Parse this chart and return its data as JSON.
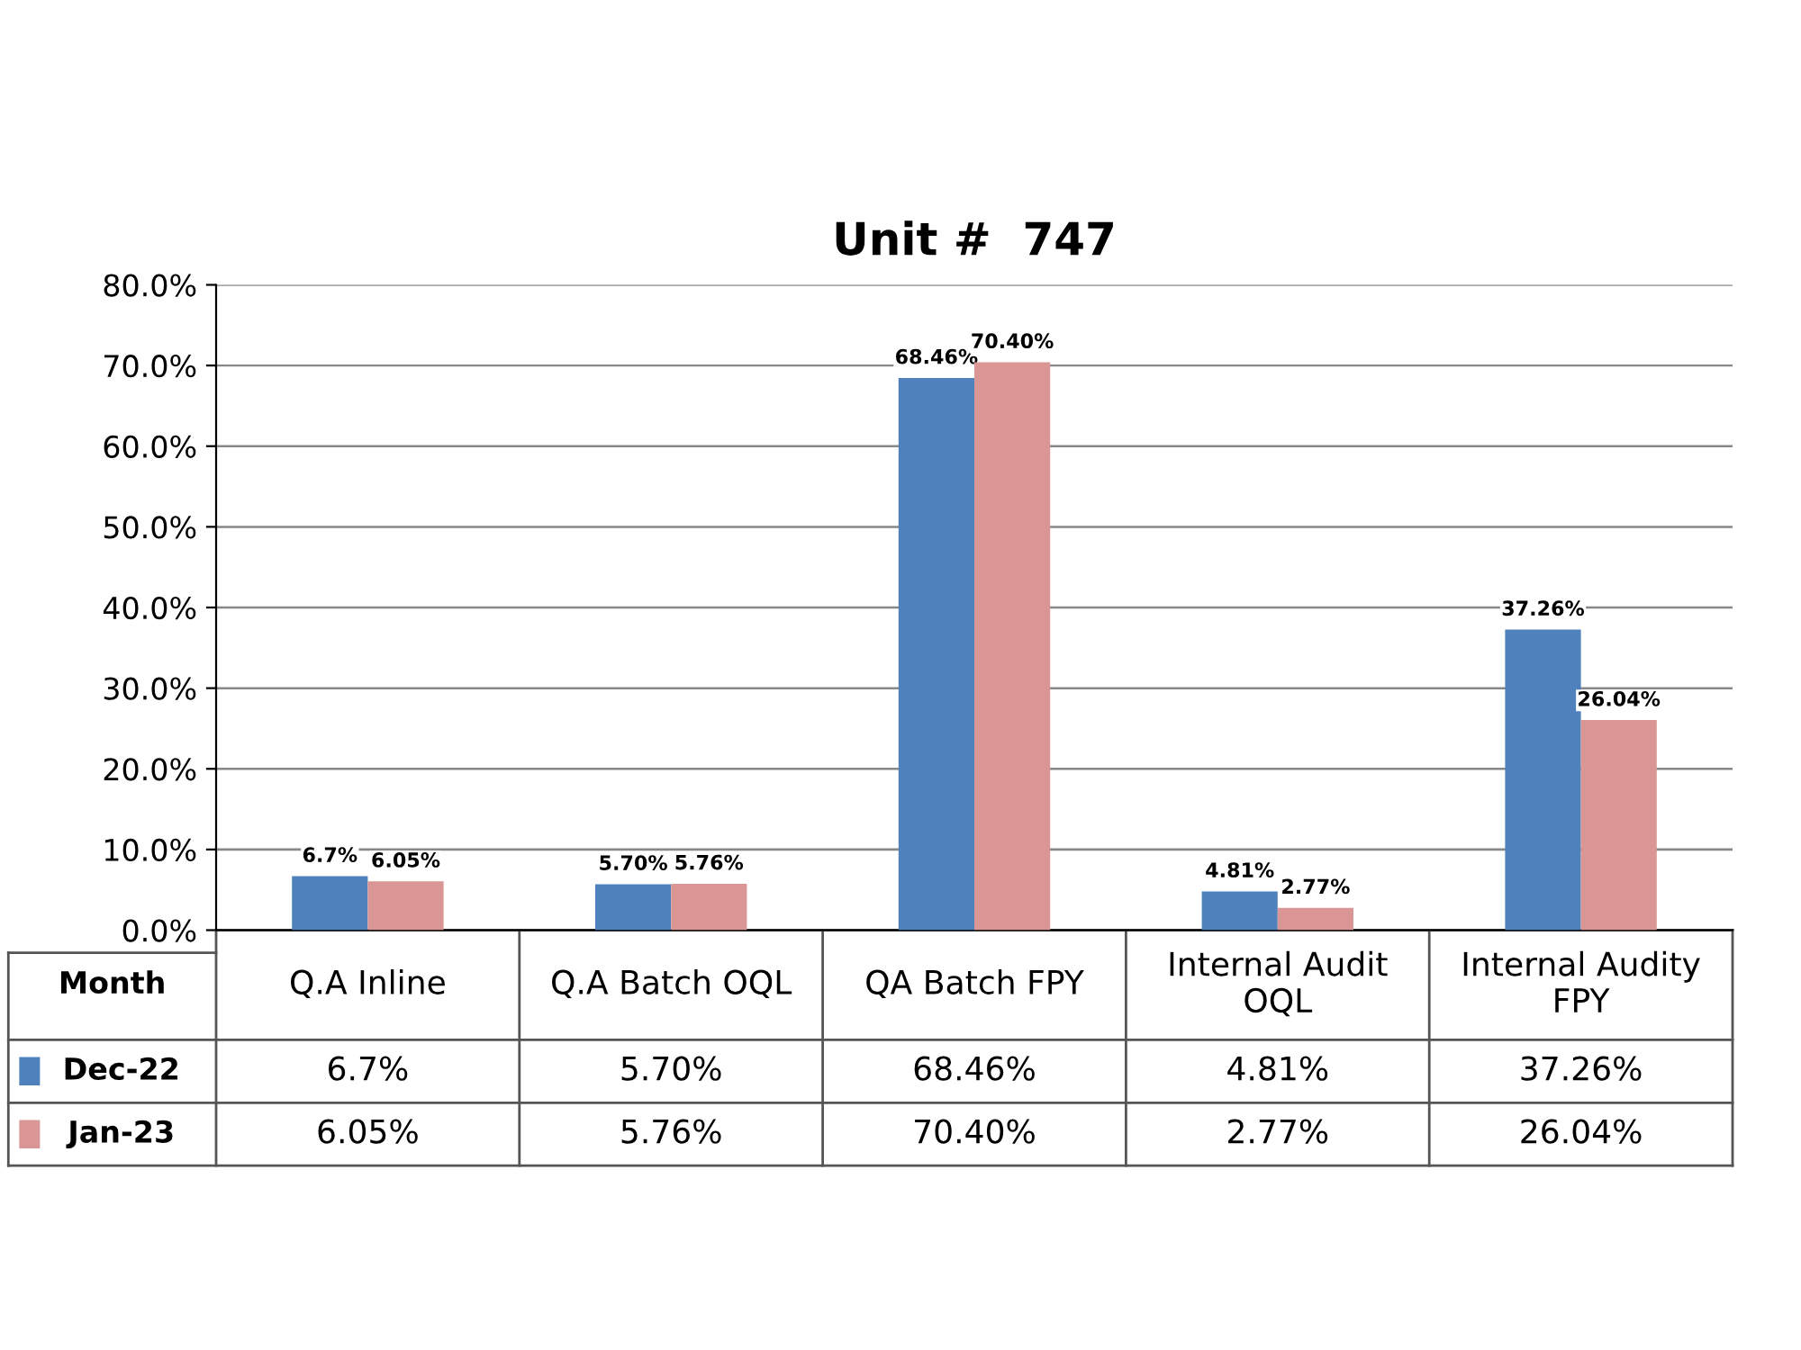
{
  "chart_data": {
    "type": "bar",
    "title": "Unit #  747",
    "categories": [
      "Q.A Inline",
      "Q.A Batch OQL",
      "QA Batch FPY",
      "Internal Audit OQL",
      "Internal Audity FPY"
    ],
    "series": [
      {
        "name": "Dec-22",
        "color": "#4f81bd",
        "values": [
          6.7,
          5.7,
          68.46,
          4.81,
          37.26
        ],
        "value_labels": [
          "6.7%",
          "5.70%",
          "68.46%",
          "4.81%",
          "37.26%"
        ]
      },
      {
        "name": "Jan-23",
        "color": "#d99694",
        "values": [
          6.05,
          5.76,
          70.4,
          2.77,
          26.04
        ],
        "value_labels": [
          "6.05%",
          "5.76%",
          "70.40%",
          "2.77%",
          "26.04%"
        ]
      }
    ],
    "ylim": [
      0,
      80
    ],
    "yticks": [
      {
        "value": 0,
        "label": "0.0%"
      },
      {
        "value": 10,
        "label": "10.0%"
      },
      {
        "value": 20,
        "label": "20.0%"
      },
      {
        "value": 30,
        "label": "30.0%"
      },
      {
        "value": 40,
        "label": "40.0%"
      },
      {
        "value": 50,
        "label": "50.0%"
      },
      {
        "value": 60,
        "label": "60.0%"
      },
      {
        "value": 70,
        "label": "70.0%"
      },
      {
        "value": 80,
        "label": "80.0%"
      }
    ],
    "grid": "y",
    "legend": "bottom",
    "annotations": [
      "Month"
    ]
  }
}
